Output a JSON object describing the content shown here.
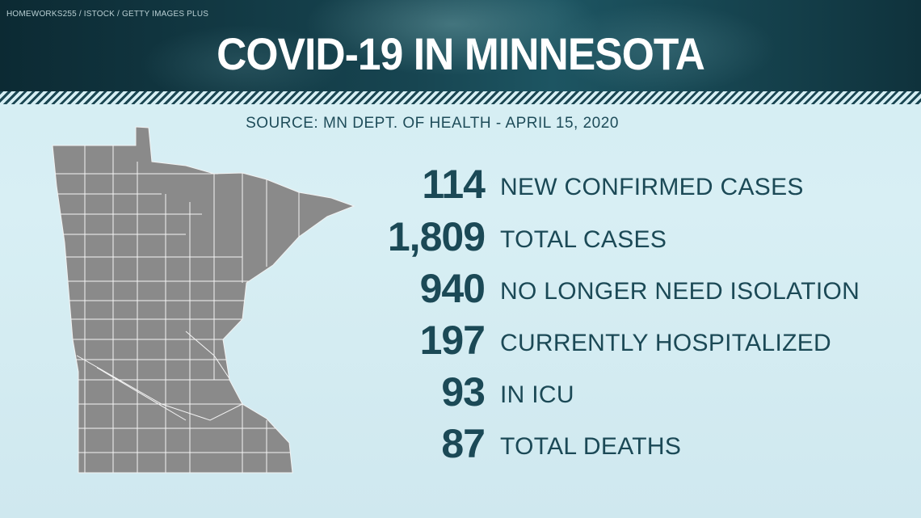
{
  "header": {
    "credit": "HOMEWORKS255 / ISTOCK / GETTY IMAGES PLUS",
    "title": "COVID-19 IN MINNESOTA"
  },
  "source": "SOURCE: MN DEPT. OF HEALTH - APRIL 15, 2020",
  "stats": [
    {
      "value": "114",
      "label": "NEW CONFIRMED CASES"
    },
    {
      "value": "1,809",
      "label": "TOTAL CASES"
    },
    {
      "value": "940",
      "label": "NO LONGER NEED ISOLATION"
    },
    {
      "value": "197",
      "label": "CURRENTLY HOSPITALIZED"
    },
    {
      "value": "93",
      "label": "IN ICU"
    },
    {
      "value": "87",
      "label": "TOTAL DEATHS"
    }
  ]
}
